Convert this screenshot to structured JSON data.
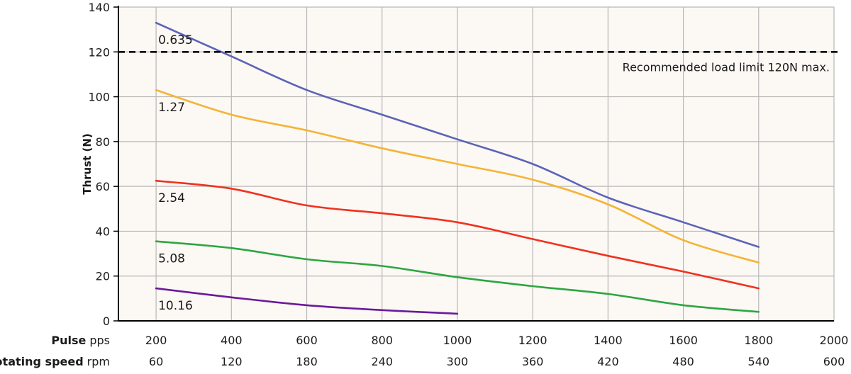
{
  "chart_data": {
    "type": "line",
    "title": "",
    "ylabel": "Thrust  (N)",
    "ylim": [
      0,
      140
    ],
    "yticks": [
      0,
      20,
      40,
      60,
      80,
      100,
      120,
      140
    ],
    "xlim": [
      100,
      2000
    ],
    "x_rows": [
      {
        "name": "Pulse",
        "unit": "pps",
        "ticks": [
          "200",
          "400",
          "600",
          "800",
          "1000",
          "1200",
          "1400",
          "1600",
          "1800",
          "2000"
        ]
      },
      {
        "name": "Rotating speed",
        "unit": "rpm",
        "ticks": [
          "60",
          "120",
          "180",
          "240",
          "300",
          "360",
          "420",
          "480",
          "540",
          "600"
        ]
      }
    ],
    "grid": true,
    "plot_background": "#fcf8f4",
    "grid_color": "#b8b8b8",
    "reference_line": {
      "y": 120,
      "label": "Recommended load limit 120N max.",
      "style": "dashed",
      "color": "#000000"
    },
    "series": [
      {
        "name": "0.635",
        "color": "#5b63b7",
        "x": [
          200,
          400,
          600,
          800,
          1000,
          1200,
          1400,
          1600,
          1800
        ],
        "y": [
          133,
          118,
          103,
          92,
          81,
          70,
          55,
          44,
          33
        ]
      },
      {
        "name": "1.27",
        "color": "#f5b335",
        "x": [
          200,
          400,
          600,
          800,
          1000,
          1200,
          1400,
          1600,
          1800
        ],
        "y": [
          103,
          92,
          85,
          77,
          70,
          63,
          52,
          36,
          26
        ]
      },
      {
        "name": "2.54",
        "color": "#f0311e",
        "x": [
          200,
          400,
          600,
          800,
          1000,
          1200,
          1400,
          1600,
          1800
        ],
        "y": [
          62.5,
          59,
          51.5,
          48,
          44,
          36.5,
          29,
          22,
          14.5
        ]
      },
      {
        "name": "5.08",
        "color": "#2ca642",
        "x": [
          200,
          400,
          600,
          800,
          1000,
          1200,
          1400,
          1600,
          1800
        ],
        "y": [
          35.5,
          32.5,
          27.5,
          24.5,
          19.5,
          15.5,
          12,
          7,
          4
        ]
      },
      {
        "name": "10.16",
        "color": "#6a1a9a",
        "x": [
          200,
          400,
          600,
          800,
          1000
        ],
        "y": [
          14.5,
          10.5,
          7,
          4.8,
          3.2
        ]
      }
    ]
  }
}
